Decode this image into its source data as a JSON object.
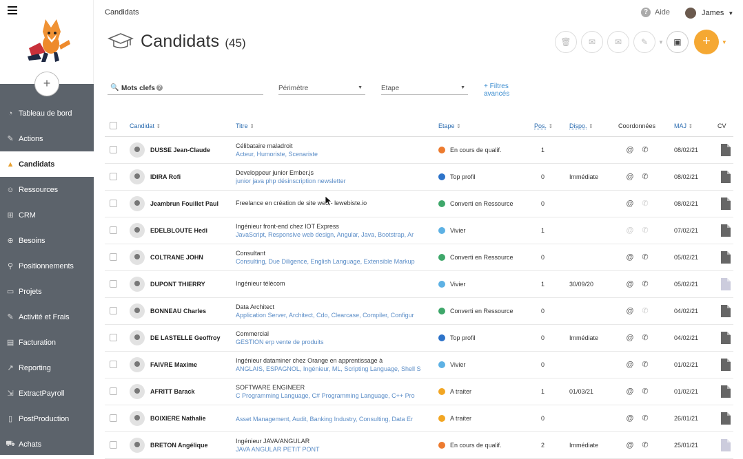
{
  "breadcrumb": "Candidats",
  "help_label": "Aide",
  "user_name": "James",
  "page": {
    "title": "Candidats",
    "count": "(45)"
  },
  "sidebar": {
    "add_label": "+",
    "items": [
      {
        "label": "Tableau de bord",
        "icon": "dashboard-icon"
      },
      {
        "label": "Actions",
        "icon": "actions-icon"
      },
      {
        "label": "Candidats",
        "icon": "graduation-cap-icon"
      },
      {
        "label": "Ressources",
        "icon": "users-icon"
      },
      {
        "label": "CRM",
        "icon": "sitemap-icon"
      },
      {
        "label": "Besoins",
        "icon": "target-icon"
      },
      {
        "label": "Positionnements",
        "icon": "pin-icon"
      },
      {
        "label": "Projets",
        "icon": "briefcase-icon"
      },
      {
        "label": "Activité et Frais",
        "icon": "edit-icon"
      },
      {
        "label": "Facturation",
        "icon": "invoice-icon"
      },
      {
        "label": "Reporting",
        "icon": "chart-icon"
      },
      {
        "label": "ExtractPayroll",
        "icon": "extract-icon"
      },
      {
        "label": "PostProduction",
        "icon": "file-icon"
      },
      {
        "label": "Achats",
        "icon": "cart-icon"
      }
    ]
  },
  "filters": {
    "search_label": "Mots clefs",
    "perimetre": "Périmètre",
    "etape": "Etape",
    "advanced": "+ Filtres avancés"
  },
  "columns": {
    "candidat": "Candidat",
    "titre": "Titre",
    "etape": "Etape",
    "pos": "Pos.",
    "dispo": "Dispo.",
    "coord": "Coordonnées",
    "maj": "MAJ",
    "cv": "CV"
  },
  "colors": {
    "accent": "#f5a833",
    "orange": "#ed7b2f",
    "blue": "#2d73c9",
    "green": "#3ea76a",
    "lightblue": "#5db1e4",
    "amber": "#f2a623"
  },
  "rows": [
    {
      "name": "DUSSE Jean-Claude",
      "title": "Célibataire maladroit",
      "sub": "Acteur, Humoriste, Scenariste",
      "etape": "En cours de qualif.",
      "color": "#ed7b2f",
      "pos": "1",
      "dispo": "",
      "maj": "08/02/21",
      "phone": true,
      "at": true,
      "cv": true
    },
    {
      "name": "IDIRA Rofi",
      "title": "Developpeur junior Ember.js",
      "sub": "junior java php désinscription newsletter",
      "etape": "Top profil",
      "color": "#2d73c9",
      "pos": "0",
      "dispo": "Immédiate",
      "maj": "08/02/21",
      "phone": true,
      "at": true,
      "cv": true
    },
    {
      "name": "Jeambrun Fouillet Paul",
      "title": "Freelance en création de site web - lewebiste.io",
      "sub": "",
      "etape": "Converti en Ressource",
      "color": "#3ea76a",
      "pos": "0",
      "dispo": "",
      "maj": "08/02/21",
      "phone": false,
      "at": true,
      "cv": true
    },
    {
      "name": "EDELBLOUTE Hedi",
      "title": "Ingénieur front-end chez IOT Express",
      "sub": "JavaScript, Responsive web design, Angular, Java, Bootstrap, Ar",
      "etape": "Vivier",
      "color": "#5db1e4",
      "pos": "1",
      "dispo": "",
      "maj": "07/02/21",
      "phone": false,
      "at": false,
      "cv": true
    },
    {
      "name": "COLTRANE JOHN",
      "title": "Consultant",
      "sub": "Consulting, Due Diligence, English Language, Extensible Markup",
      "etape": "Converti en Ressource",
      "color": "#3ea76a",
      "pos": "0",
      "dispo": "",
      "maj": "05/02/21",
      "phone": true,
      "at": true,
      "cv": true
    },
    {
      "name": "DUPONT THIERRY",
      "title": "Ingénieur télécom",
      "sub": "",
      "etape": "Vivier",
      "color": "#5db1e4",
      "pos": "1",
      "dispo": "30/09/20",
      "maj": "05/02/21",
      "phone": true,
      "at": true,
      "cv": false
    },
    {
      "name": "BONNEAU Charles",
      "title": "Data Architect",
      "sub": "Application Server, Architect, Cdo, Clearcase, Compiler, Configur",
      "etape": "Converti en Ressource",
      "color": "#3ea76a",
      "pos": "0",
      "dispo": "",
      "maj": "04/02/21",
      "phone": false,
      "at": true,
      "cv": true
    },
    {
      "name": "DE LASTELLE Geoffroy",
      "title": "Commercial",
      "sub": "GESTION erp vente de produits",
      "etape": "Top profil",
      "color": "#2d73c9",
      "pos": "0",
      "dispo": "Immédiate",
      "maj": "04/02/21",
      "phone": true,
      "at": true,
      "cv": true
    },
    {
      "name": "FAIVRE Maxime",
      "title": "Ingénieur dataminer chez Orange en apprentissage à",
      "sub": "ANGLAIS, ESPAGNOL, Ingénieur, ML, Scripting Language, Shell S",
      "etape": "Vivier",
      "color": "#5db1e4",
      "pos": "0",
      "dispo": "",
      "maj": "01/02/21",
      "phone": true,
      "at": true,
      "cv": true
    },
    {
      "name": "AFRITT Barack",
      "title": "SOFTWARE ENGINEER",
      "sub": "C Programming Language, C# Programming Language, C++ Pro",
      "etape": "A traiter",
      "color": "#f2a623",
      "pos": "1",
      "dispo": "01/03/21",
      "maj": "01/02/21",
      "phone": true,
      "at": true,
      "cv": true
    },
    {
      "name": "BOIXIERE Nathalie",
      "title": "",
      "sub": "Asset Management, Audit, Banking Industry, Consulting, Data Er",
      "etape": "A traiter",
      "color": "#f2a623",
      "pos": "0",
      "dispo": "",
      "maj": "26/01/21",
      "phone": true,
      "at": true,
      "cv": true
    },
    {
      "name": "BRETON Angélique",
      "title": "Ingénieur JAVA/ANGULAR",
      "sub": "JAVA ANGULAR PETIT PONT",
      "etape": "En cours de qualif.",
      "color": "#ed7b2f",
      "pos": "2",
      "dispo": "Immédiate",
      "maj": "25/01/21",
      "phone": true,
      "at": true,
      "cv": false
    }
  ]
}
